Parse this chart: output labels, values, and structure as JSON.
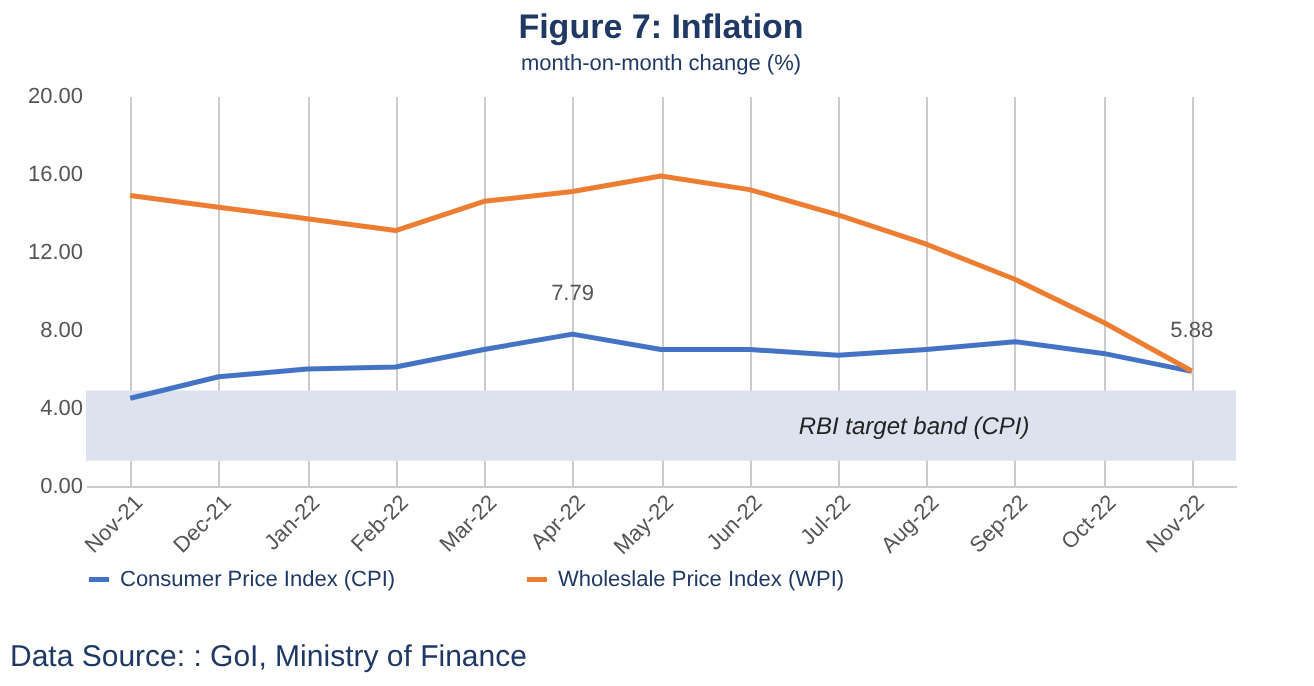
{
  "chart_data": {
    "type": "line",
    "title": "Figure 7: Inflation",
    "subtitle": "month-on-month change (%)",
    "categories": [
      "Nov-21",
      "Dec-21",
      "Jan-22",
      "Feb-22",
      "Mar-22",
      "Apr-22",
      "May-22",
      "Jun-22",
      "Jul-22",
      "Aug-22",
      "Sep-22",
      "Oct-22",
      "Nov-22"
    ],
    "series": [
      {
        "name": "Consumer Price Index (CPI)",
        "color": "#4472c4",
        "values": [
          4.5,
          5.6,
          6.0,
          6.1,
          7.0,
          7.79,
          7.0,
          7.0,
          6.7,
          7.0,
          7.4,
          6.8,
          5.88
        ],
        "value_labels": [
          null,
          null,
          null,
          null,
          null,
          "7.79",
          null,
          null,
          null,
          null,
          null,
          null,
          "5.88"
        ]
      },
      {
        "name": "Wholeslale Price Index (WPI)",
        "color": "#ed7d31",
        "values": [
          14.9,
          14.3,
          13.7,
          13.1,
          14.6,
          15.1,
          15.9,
          15.2,
          13.9,
          12.4,
          10.6,
          8.4,
          5.9
        ]
      }
    ],
    "ylim": [
      0,
      20
    ],
    "yticks": [
      {
        "value": 0,
        "label": "0.00"
      },
      {
        "value": 4,
        "label": "4.00"
      },
      {
        "value": 8,
        "label": "8.00"
      },
      {
        "value": 12,
        "label": "12.00"
      },
      {
        "value": 16,
        "label": "16.00"
      },
      {
        "value": 20,
        "label": "20.00"
      }
    ],
    "bands": [
      {
        "axis": "y",
        "from": 1.3,
        "to": 4.9,
        "label": "RBI target band (CPI)",
        "color": "#dce3ee"
      }
    ],
    "grid": "x",
    "legend": "bottom",
    "marker": "none",
    "line_style": "solid",
    "annotations": [
      "Data Source: : GoI, Ministry of Finance"
    ]
  }
}
